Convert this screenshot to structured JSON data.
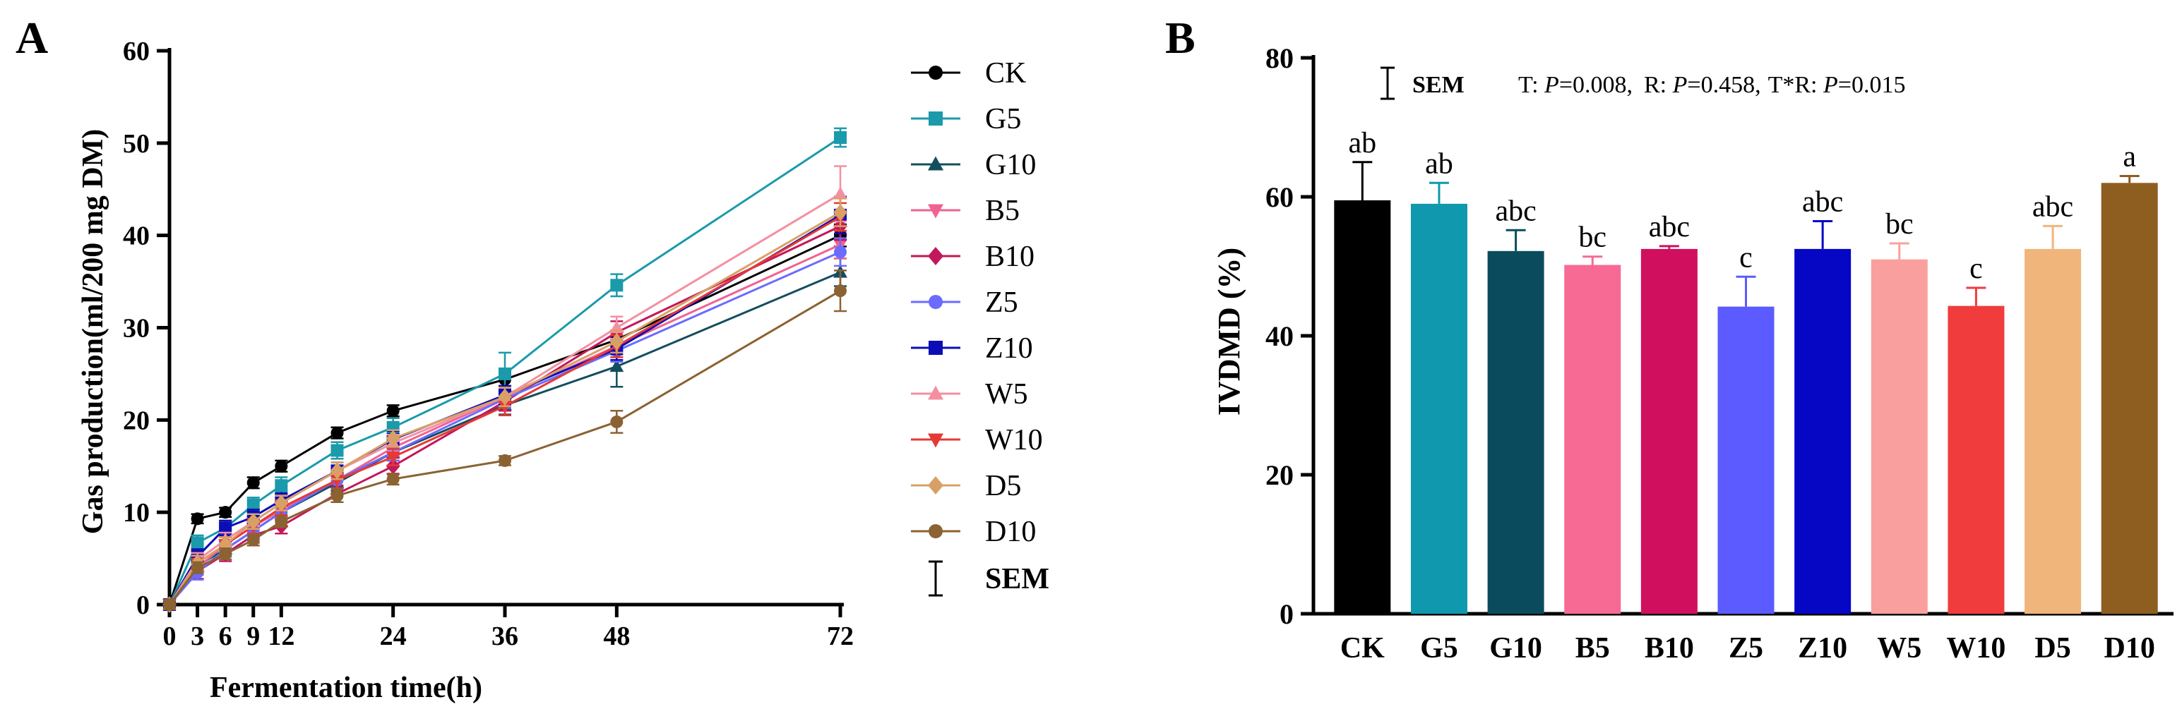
{
  "chart_data": [
    {
      "type": "line",
      "panel_label": "A",
      "xlabel": "Fermentation time(h)",
      "ylabel": "Gas production(ml/200 mg DM)",
      "x": [
        0,
        3,
        6,
        9,
        12,
        18,
        24,
        36,
        48,
        72
      ],
      "x_ticks": [
        0,
        3,
        6,
        9,
        12,
        24,
        36,
        48,
        72
      ],
      "x_tick_labels": [
        "0",
        "3",
        "6",
        "9",
        "12",
        "24",
        "36",
        "48",
        "72"
      ],
      "xlim": [
        0,
        72
      ],
      "ylim": [
        0,
        60
      ],
      "y_ticks": [
        0,
        10,
        20,
        30,
        40,
        50,
        60
      ],
      "legend_position": "right",
      "sem_legend_label": "SEM",
      "series": [
        {
          "name": "CK",
          "color": "#000000",
          "marker": "circle",
          "values": [
            0,
            9.3,
            10.0,
            13.2,
            15.0,
            18.6,
            21.0,
            24.4,
            28.7,
            40.0
          ],
          "sem": [
            0.5,
            0.5,
            0.5,
            0.6,
            0.6,
            0.6,
            0.6,
            0.8,
            1.0,
            1.2
          ]
        },
        {
          "name": "G5",
          "color": "#1a9aab",
          "marker": "square",
          "values": [
            0,
            6.7,
            8.3,
            10.8,
            12.9,
            16.7,
            19.2,
            25.0,
            34.6,
            50.6
          ],
          "sem": [
            0.5,
            0.8,
            0.8,
            0.8,
            0.9,
            0.9,
            1.0,
            2.3,
            1.2,
            1.0
          ]
        },
        {
          "name": "G10",
          "color": "#134e5e",
          "marker": "triangle-up",
          "values": [
            0,
            4.2,
            6.0,
            8.0,
            10.0,
            13.2,
            16.5,
            21.6,
            25.8,
            36.0
          ],
          "sem": [
            0.5,
            0.8,
            0.8,
            0.8,
            0.8,
            0.9,
            0.9,
            1.0,
            2.2,
            1.5
          ]
        },
        {
          "name": "B5",
          "color": "#f06292",
          "marker": "triangle-down",
          "values": [
            0,
            4.0,
            6.5,
            8.5,
            10.2,
            13.5,
            17.0,
            22.5,
            28.0,
            39.0
          ],
          "sem": [
            0.5,
            0.8,
            0.8,
            0.8,
            0.8,
            0.9,
            0.9,
            1.0,
            1.2,
            1.5
          ]
        },
        {
          "name": "B10",
          "color": "#c2185b",
          "marker": "diamond",
          "values": [
            0,
            3.6,
            5.5,
            7.5,
            8.5,
            12.0,
            15.0,
            22.0,
            29.5,
            41.0
          ],
          "sem": [
            0.5,
            0.8,
            0.8,
            0.8,
            0.8,
            0.9,
            0.9,
            1.0,
            1.2,
            1.5
          ]
        },
        {
          "name": "Z5",
          "color": "#6b6bff",
          "marker": "circle",
          "values": [
            0,
            3.5,
            6.0,
            8.0,
            10.0,
            13.5,
            16.5,
            22.3,
            27.5,
            38.2
          ],
          "sem": [
            0.5,
            0.8,
            0.8,
            0.8,
            0.8,
            0.9,
            0.9,
            1.0,
            1.2,
            1.5
          ]
        },
        {
          "name": "Z10",
          "color": "#0d0db5",
          "marker": "square",
          "values": [
            0,
            5.2,
            8.3,
            9.5,
            11.3,
            14.5,
            17.9,
            22.7,
            27.7,
            42.2
          ],
          "sem": [
            0.5,
            0.8,
            0.8,
            0.8,
            0.8,
            0.9,
            0.9,
            1.0,
            1.2,
            2.0
          ]
        },
        {
          "name": "W5",
          "color": "#f48fa0",
          "marker": "triangle-up",
          "values": [
            0,
            4.8,
            7.0,
            9.0,
            11.0,
            14.5,
            17.5,
            22.5,
            30.0,
            44.5
          ],
          "sem": [
            0.5,
            0.8,
            0.8,
            0.8,
            0.8,
            0.9,
            0.9,
            1.0,
            1.2,
            3.0
          ]
        },
        {
          "name": "W10",
          "color": "#e53935",
          "marker": "triangle-down",
          "values": [
            0,
            4.5,
            6.5,
            8.5,
            10.5,
            13.5,
            16.0,
            21.5,
            28.0,
            42.0
          ],
          "sem": [
            0.5,
            0.8,
            0.8,
            0.8,
            0.8,
            0.9,
            0.9,
            1.0,
            1.2,
            1.5
          ]
        },
        {
          "name": "D5",
          "color": "#d9a066",
          "marker": "diamond",
          "values": [
            0,
            4.5,
            6.5,
            9.0,
            11.0,
            14.5,
            18.0,
            22.5,
            28.5,
            42.5
          ],
          "sem": [
            0.5,
            0.8,
            0.8,
            0.8,
            0.8,
            0.9,
            0.9,
            1.0,
            1.2,
            1.5
          ]
        },
        {
          "name": "D10",
          "color": "#8b6232",
          "marker": "circle",
          "values": [
            0,
            4.0,
            5.5,
            7.0,
            9.0,
            11.8,
            13.6,
            15.6,
            19.8,
            34.0
          ],
          "sem": [
            0.5,
            0.6,
            0.6,
            0.6,
            0.6,
            0.7,
            0.6,
            0.5,
            1.2,
            2.2
          ]
        }
      ]
    },
    {
      "type": "bar",
      "panel_label": "B",
      "xlabel": "",
      "ylabel": "IVDMD (%)",
      "ylim": [
        0,
        80
      ],
      "y_ticks": [
        0,
        20,
        40,
        60,
        80
      ],
      "categories": [
        "CK",
        "G5",
        "G10",
        "B5",
        "B10",
        "Z5",
        "Z10",
        "W5",
        "W10",
        "D5",
        "D10"
      ],
      "values": [
        59.5,
        59.0,
        52.2,
        50.2,
        52.5,
        44.2,
        52.5,
        51.0,
        44.3,
        52.5,
        62.0
      ],
      "sem": [
        5.5,
        3.0,
        3.0,
        1.2,
        0.4,
        4.3,
        4.0,
        2.3,
        2.6,
        3.3,
        1.0
      ],
      "letters": [
        "ab",
        "ab",
        "abc",
        "bc",
        "abc",
        "c",
        "abc",
        "bc",
        "c",
        "abc",
        "a"
      ],
      "colors": [
        "#000000",
        "#0f98ae",
        "#0a4c5e",
        "#f76a93",
        "#d0105f",
        "#5b5bff",
        "#0606c5",
        "#f9a09e",
        "#f03c3c",
        "#f0b57b",
        "#8e5d20"
      ],
      "annotation": {
        "sem_label": "SEM",
        "stats": [
          {
            "prefix": "T: ",
            "p": "P",
            "value": "=0.008,"
          },
          {
            "prefix": "R: ",
            "p": "P",
            "value": "=0.458,"
          },
          {
            "prefix": "T*R: ",
            "p": "P",
            "value": "=0.015"
          }
        ]
      }
    }
  ]
}
